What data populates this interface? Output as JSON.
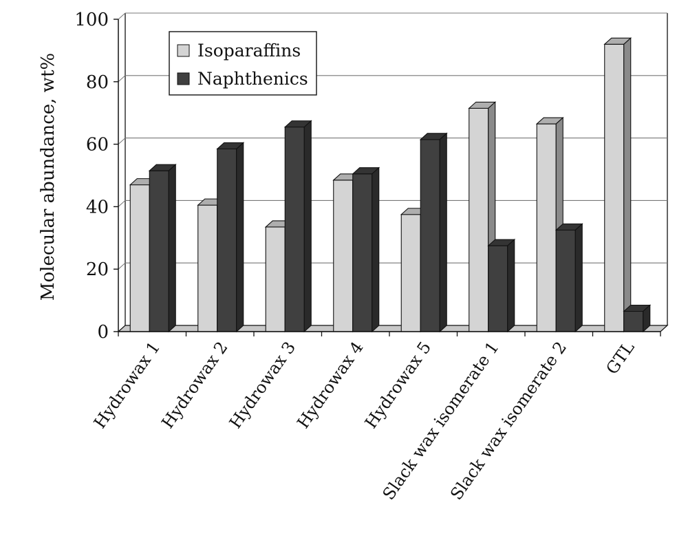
{
  "chart_data": {
    "type": "bar",
    "title": "",
    "xlabel": "",
    "ylabel": "Molecular abundance, wt%",
    "ylim": [
      0,
      100
    ],
    "yticks": [
      0,
      20,
      40,
      60,
      80,
      100
    ],
    "grid": true,
    "legend_position": "top-left",
    "categories": [
      "Hydrowax 1",
      "Hydrowax 2",
      "Hydrowax 3",
      "Hydrowax 4",
      "Hydrowax 5",
      "Slack wax isomerate 1",
      "Slack wax isomerate 2",
      "GTL"
    ],
    "series": [
      {
        "name": "Isoparaffins",
        "color": "#d4d4d4",
        "values": [
          47,
          40.5,
          33.5,
          48.5,
          37.5,
          71.5,
          66.5,
          92
        ]
      },
      {
        "name": "Naphthenics",
        "color": "#404040",
        "values": [
          51.5,
          58.5,
          65.5,
          50.5,
          61.5,
          27.5,
          32.5,
          6.5
        ]
      }
    ]
  }
}
